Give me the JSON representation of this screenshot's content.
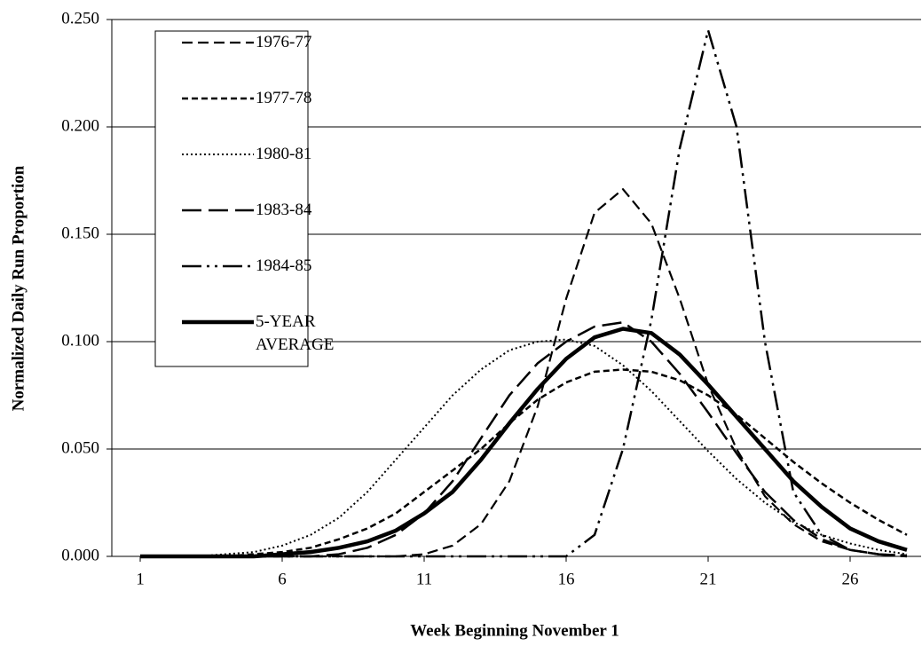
{
  "chart_data": {
    "type": "line",
    "xlabel": "Week Beginning November 1",
    "ylabel": "Normalized  Daily  Run  Proportion",
    "x": [
      1,
      2,
      3,
      4,
      5,
      6,
      7,
      8,
      9,
      10,
      11,
      12,
      13,
      14,
      15,
      16,
      17,
      18,
      19,
      20,
      21,
      22,
      23,
      24,
      25,
      26,
      27,
      28
    ],
    "xlim": [
      0,
      28.5
    ],
    "xticks": [
      1,
      6,
      11,
      16,
      21,
      26
    ],
    "ylim": [
      0,
      0.25
    ],
    "yticks": [
      {
        "value": 0,
        "label": "0.000"
      },
      {
        "value": 0.05,
        "label": "0.050"
      },
      {
        "value": 0.1,
        "label": "0.100"
      },
      {
        "value": 0.15,
        "label": "0.150"
      },
      {
        "value": 0.2,
        "label": "0.200"
      },
      {
        "value": 0.25,
        "label": "0.250"
      }
    ],
    "grid": true,
    "legend": "upper left",
    "series": [
      {
        "name": "1976-77",
        "color": "#000000",
        "dash": "12 6",
        "width": 2.2,
        "values": [
          0,
          0,
          0,
          0,
          0,
          0,
          0,
          0,
          0,
          0,
          0.001,
          0.005,
          0.015,
          0.035,
          0.07,
          0.12,
          0.16,
          0.171,
          0.155,
          0.12,
          0.08,
          0.05,
          0.028,
          0.015,
          0.007,
          0.003,
          0.001,
          0.0005
        ]
      },
      {
        "name": "1977-78",
        "color": "#000000",
        "dash": "7 4",
        "width": 2.5,
        "values": [
          0,
          0,
          0,
          0,
          0.001,
          0.002,
          0.004,
          0.008,
          0.013,
          0.02,
          0.03,
          0.04,
          0.05,
          0.062,
          0.073,
          0.081,
          0.086,
          0.087,
          0.086,
          0.082,
          0.075,
          0.066,
          0.055,
          0.044,
          0.034,
          0.025,
          0.017,
          0.01
        ]
      },
      {
        "name": "1980-81",
        "color": "#000000",
        "dash": "2 3",
        "width": 2,
        "values": [
          0,
          0,
          0,
          0.001,
          0.002,
          0.005,
          0.01,
          0.018,
          0.03,
          0.045,
          0.06,
          0.075,
          0.087,
          0.096,
          0.1,
          0.101,
          0.098,
          0.089,
          0.077,
          0.063,
          0.049,
          0.036,
          0.025,
          0.016,
          0.01,
          0.006,
          0.003,
          0.001
        ]
      },
      {
        "name": "1983-84",
        "color": "#000000",
        "dash": "22 8",
        "width": 2.5,
        "values": [
          0,
          0,
          0,
          0,
          0,
          0,
          0,
          0.001,
          0.004,
          0.01,
          0.02,
          0.035,
          0.055,
          0.075,
          0.09,
          0.1,
          0.107,
          0.109,
          0.1,
          0.085,
          0.067,
          0.048,
          0.03,
          0.017,
          0.008,
          0.003,
          0.001,
          0
        ]
      },
      {
        "name": "1984-85",
        "color": "#000000",
        "dash": "22 6 3 6 3 6",
        "width": 2.5,
        "values": [
          0,
          0,
          0,
          0,
          0,
          0,
          0,
          0,
          0,
          0,
          0,
          0,
          0,
          0,
          0,
          0,
          0.01,
          0.05,
          0.11,
          0.19,
          0.245,
          0.2,
          0.1,
          0.03,
          0.01,
          0.003,
          0.001,
          0
        ]
      },
      {
        "name": "5-YEAR AVERAGE",
        "color": "#000000",
        "dash": "none",
        "width": 4.5,
        "values": [
          0,
          0,
          0,
          0,
          0,
          0.001,
          0.002,
          0.004,
          0.007,
          0.012,
          0.02,
          0.03,
          0.045,
          0.062,
          0.078,
          0.092,
          0.102,
          0.106,
          0.104,
          0.094,
          0.08,
          0.065,
          0.05,
          0.035,
          0.023,
          0.013,
          0.007,
          0.003
        ]
      }
    ]
  }
}
